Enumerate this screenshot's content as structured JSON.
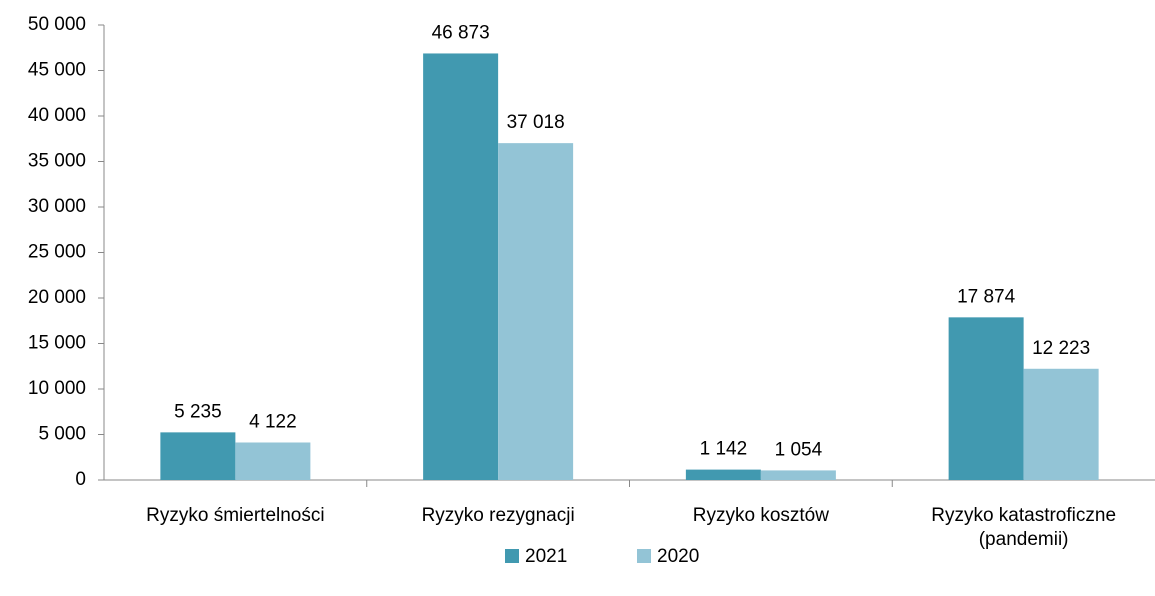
{
  "chart_data": {
    "type": "bar",
    "categories": [
      "Ryzyko śmiertelności",
      "Ryzyko rezygnacji",
      "Ryzyko kosztów",
      "Ryzyko katastroficzne (pandemii)"
    ],
    "series": [
      {
        "name": "2021",
        "color": "#4199b0",
        "values": [
          5235,
          46873,
          1142,
          17874
        ],
        "value_labels": [
          "5 235",
          "46 873",
          "1 142",
          "17 874"
        ]
      },
      {
        "name": "2020",
        "color": "#93c4d6",
        "values": [
          4122,
          37018,
          1054,
          12223
        ],
        "value_labels": [
          "4 122",
          "37 018",
          "1 054",
          "12 223"
        ]
      }
    ],
    "ylim": [
      0,
      50000
    ],
    "yticks": [
      0,
      {
        "value": 5000,
        "label": "5 000"
      },
      {
        "value": 10000,
        "label": "10 000"
      },
      {
        "value": 15000,
        "label": "15 000"
      },
      {
        "value": 20000,
        "label": "20 000"
      },
      {
        "value": 25000,
        "label": "25 000"
      },
      {
        "value": 30000,
        "label": "30 000"
      },
      {
        "value": 35000,
        "label": "35 000"
      },
      {
        "value": 40000,
        "label": "40 000"
      },
      {
        "value": 45000,
        "label": "45 000"
      },
      {
        "value": 50000,
        "label": "50 000"
      }
    ],
    "grid": false,
    "legend": "bottom"
  }
}
